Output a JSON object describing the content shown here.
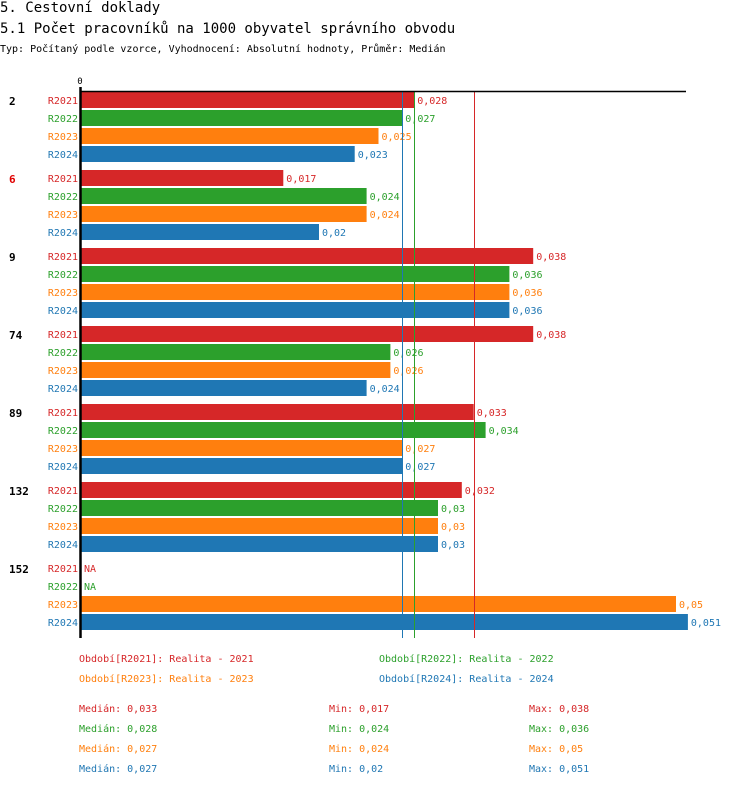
{
  "header": {
    "title": "5. Cestovní doklady",
    "subtitle": "5.1 Počet pracovníků na 1000 obyvatel správního obvodu",
    "info": "Typ: Počítaný podle vzorce, Vyhodnocení: Absolutní hodnoty, Průměr: Medián"
  },
  "colors": {
    "R2021": "#d62728",
    "R2022": "#2ca02c",
    "R2023": "#ff7f0e",
    "R2024": "#1f77b4",
    "highlight_group": "#e00000",
    "axis": "#000000"
  },
  "chart_data": {
    "type": "bar",
    "orientation": "horizontal",
    "title": "5.1 Počet pracovníků na 1000 obyvatel správního obvodu",
    "xlabel": "",
    "ylabel": "",
    "x_tick_labels": [
      "0"
    ],
    "xlim": [
      0,
      0.0535
    ],
    "categories": [
      "2",
      "6",
      "9",
      "74",
      "89",
      "132",
      "152"
    ],
    "highlighted_category": "6",
    "series": [
      {
        "name": "R2021",
        "values": [
          0.028,
          0.017,
          0.038,
          0.038,
          0.033,
          0.032,
          null
        ],
        "labels": [
          "0,028",
          "0,017",
          "0,038",
          "0,038",
          "0,033",
          "0,032",
          "NA"
        ]
      },
      {
        "name": "R2022",
        "values": [
          0.027,
          0.024,
          0.036,
          0.026,
          0.034,
          0.03,
          null
        ],
        "labels": [
          "0,027",
          "0,024",
          "0,036",
          "0,026",
          "0,034",
          "0,03",
          "NA"
        ]
      },
      {
        "name": "R2023",
        "values": [
          0.025,
          0.024,
          0.036,
          0.026,
          0.027,
          0.03,
          0.05
        ],
        "labels": [
          "0,025",
          "0,024",
          "0,036",
          "0,026",
          "0,027",
          "0,03",
          "0,05"
        ]
      },
      {
        "name": "R2024",
        "values": [
          0.023,
          0.02,
          0.036,
          0.024,
          0.027,
          0.03,
          0.051
        ],
        "labels": [
          "0,023",
          "0,02",
          "0,036",
          "0,024",
          "0,027",
          "0,03",
          "0,051"
        ]
      }
    ],
    "median_lines": [
      {
        "series": "R2021",
        "value": 0.033
      },
      {
        "series": "R2022",
        "value": 0.028
      },
      {
        "series": "R2023",
        "value": 0.027
      },
      {
        "series": "R2024",
        "value": 0.027
      }
    ],
    "legend": [
      {
        "series": "R2021",
        "text": "Období[R2021]: Realita - 2021"
      },
      {
        "series": "R2022",
        "text": "Období[R2022]: Realita - 2022"
      },
      {
        "series": "R2023",
        "text": "Období[R2023]: Realita - 2023"
      },
      {
        "series": "R2024",
        "text": "Období[R2024]: Realita - 2024"
      }
    ],
    "legend_position": "bottom",
    "stats": [
      {
        "series": "R2021",
        "median": "Medián: 0,033",
        "min": "Min: 0,017",
        "max": "Max: 0,038"
      },
      {
        "series": "R2022",
        "median": "Medián: 0,028",
        "min": "Min: 0,024",
        "max": "Max: 0,036"
      },
      {
        "series": "R2023",
        "median": "Medián: 0,027",
        "min": "Min: 0,024",
        "max": "Max: 0,05"
      },
      {
        "series": "R2024",
        "median": "Medián: 0,027",
        "min": "Min: 0,02",
        "max": "Max: 0,051"
      }
    ],
    "grid": false
  }
}
